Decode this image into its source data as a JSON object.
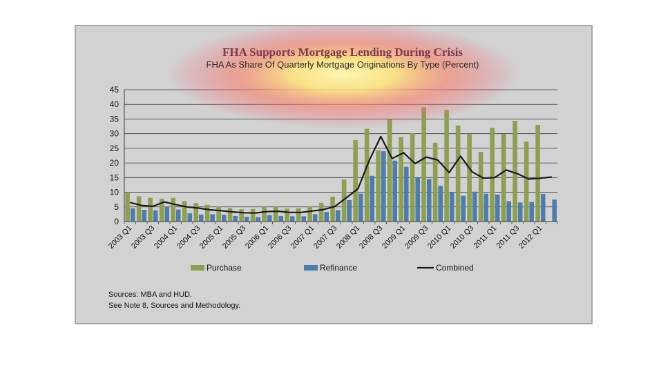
{
  "chart_data": {
    "type": "bar",
    "title": "FHA Supports Mortgage Lending During Crisis",
    "subtitle": "FHA As Share Of Quarterly Mortgage Originations By Type (Percent)",
    "ylim": [
      0,
      45
    ],
    "yticks": [
      0,
      5,
      10,
      15,
      20,
      25,
      30,
      35,
      40,
      45
    ],
    "grid": true,
    "legend_position": "bottom",
    "quarters": [
      "2003 Q1",
      "2003 Q2",
      "2003 Q3",
      "2003 Q4",
      "2004 Q1",
      "2004 Q2",
      "2004 Q3",
      "2004 Q4",
      "2005 Q1",
      "2005 Q2",
      "2005 Q3",
      "2005 Q4",
      "2006 Q1",
      "2006 Q2",
      "2006 Q3",
      "2006 Q4",
      "2007 Q1",
      "2007 Q2",
      "2007 Q3",
      "2007 Q4",
      "2008 Q1",
      "2008 Q2",
      "2008 Q3",
      "2008 Q4",
      "2009 Q1",
      "2009 Q2",
      "2009 Q3",
      "2009 Q4",
      "2010 Q1",
      "2010 Q2",
      "2010 Q3",
      "2010 Q4",
      "2011 Q1",
      "2011 Q2",
      "2011 Q3",
      "2011 Q4",
      "2012 Q1",
      "2012 Q2"
    ],
    "tick_labels": [
      "2003 Q1",
      "2003 Q3",
      "2004 Q1",
      "2004 Q3",
      "2005 Q1",
      "2005 Q3",
      "2006 Q1",
      "2006 Q3",
      "2007 Q1",
      "2007 Q3",
      "2008 Q1",
      "2008 Q3",
      "2009 Q1",
      "2009 Q3",
      "2010 Q1",
      "2010 Q3",
      "2011 Q1",
      "2011 Q3",
      "2012 Q1"
    ],
    "series": [
      {
        "name": "Purchase",
        "kind": "bar",
        "color": "#8c9f55",
        "values": [
          10,
          8.6,
          8.1,
          7.8,
          8.1,
          7,
          6.3,
          5.7,
          5.1,
          4.6,
          4.2,
          4.3,
          5,
          5,
          4.4,
          4.5,
          5.2,
          6.4,
          8.5,
          14.3,
          27.8,
          31.7,
          24.3,
          35,
          28.8,
          30.1,
          39,
          26.9,
          38.1,
          32.8,
          29.8,
          23.8,
          32,
          29.9,
          34.4,
          27.3,
          33,
          0
        ]
      },
      {
        "name": "Refinance",
        "kind": "bar",
        "color": "#4f7ca8",
        "values": [
          4.5,
          4,
          3.8,
          5,
          4.1,
          2.8,
          2.4,
          2.5,
          2.3,
          1.9,
          1.6,
          1.5,
          2.2,
          1.9,
          1.8,
          1.8,
          2.5,
          3.3,
          3.9,
          7.3,
          9.5,
          15.6,
          24,
          20.8,
          18.7,
          15,
          14.5,
          12.2,
          10,
          8.8,
          10.2,
          9.5,
          9.2,
          6.9,
          6.5,
          6.7,
          9.4,
          7.5
        ]
      },
      {
        "name": "Combined",
        "kind": "line",
        "color": "#1a1a1a",
        "values": [
          6.5,
          5.5,
          5.2,
          6.7,
          5.8,
          5,
          4.6,
          4,
          3.7,
          3.3,
          3,
          2.9,
          3.4,
          3.5,
          3.1,
          3.1,
          3.6,
          4.1,
          5.2,
          8.2,
          11.2,
          21,
          29,
          21.5,
          23.5,
          19.8,
          22,
          21,
          16.7,
          22.3,
          17,
          14.8,
          15,
          17.6,
          16.3,
          14.5,
          14.8,
          15.2
        ]
      }
    ]
  },
  "sources": [
    "Sources:  MBA and HUD.",
    "See Note 8, Sources and Methodology."
  ]
}
